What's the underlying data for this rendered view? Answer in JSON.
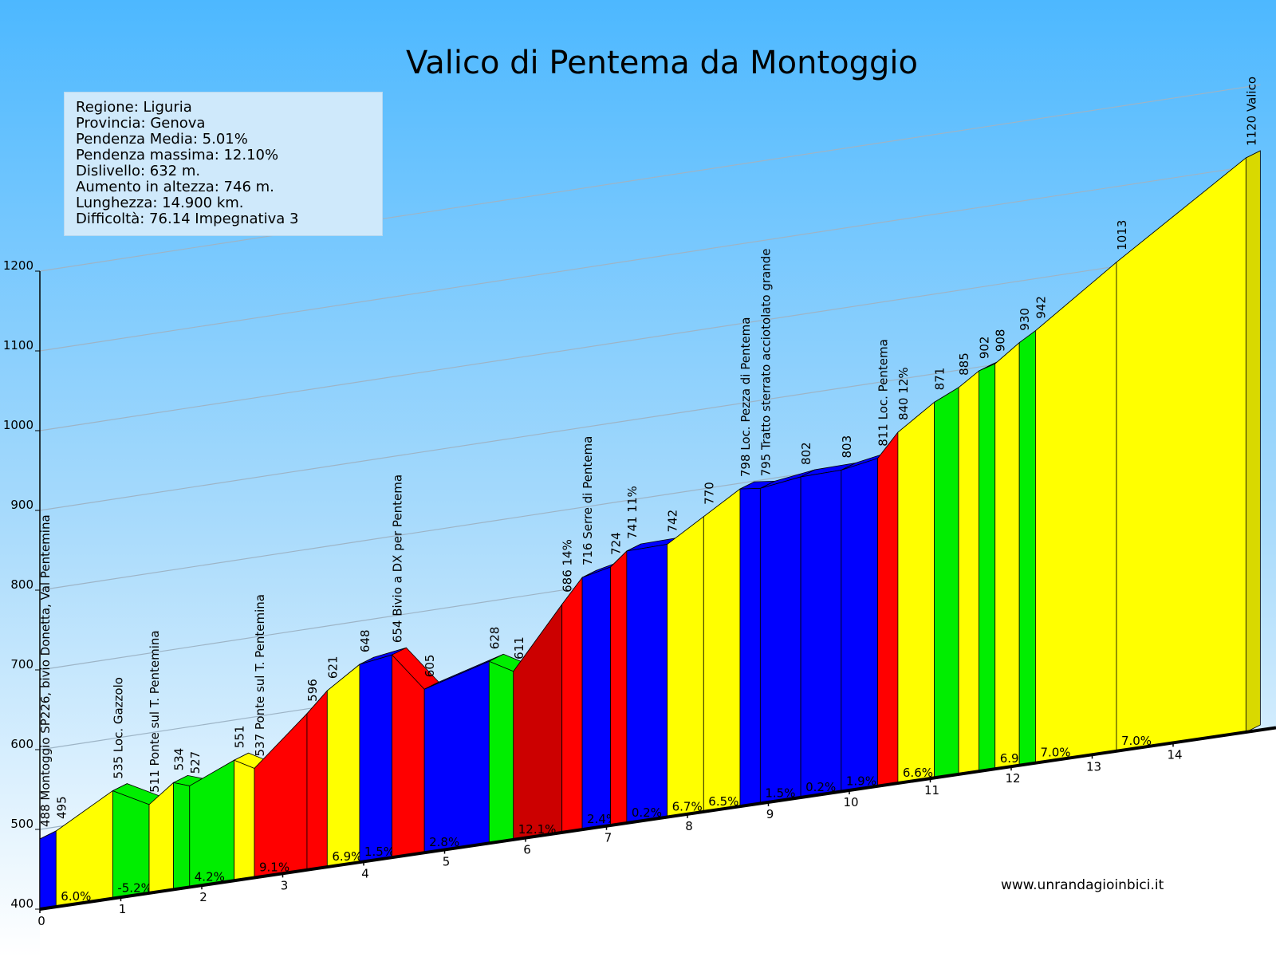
{
  "title": "Valico di Pentema da Montoggio",
  "info": {
    "lines": [
      "Regione: Liguria",
      "Provincia: Genova",
      "Pendenza Media: 5.01%",
      "Pendenza massima: 12.10%",
      "Dislivello: 632 m.",
      "Aumento in altezza: 746 m.",
      "Lunghezza: 14.900 km.",
      "Difficoltà: 76.14 Impegnativa 3"
    ]
  },
  "website": "www.unrandagioinbici.it",
  "colors": {
    "blue": "#0000ff",
    "yellow": "#ffff00",
    "green": "#00ee00",
    "red": "#ff0000",
    "darkred": "#cc0000",
    "sky_top": "#4db8ff",
    "sky_bottom": "#ffffff"
  },
  "chart_data": {
    "type": "area",
    "title": "Valico di Pentema da Montoggio",
    "xlabel": "",
    "ylabel": "",
    "x_unit": "km",
    "xlim": [
      0,
      14.9
    ],
    "ylim": [
      400,
      1200
    ],
    "y_ticks": [
      "400",
      "500",
      "600",
      "700",
      "800",
      "900",
      "1000",
      "1100",
      "1200"
    ],
    "x_ticks": [
      "0",
      "1",
      "2",
      "3",
      "4",
      "5",
      "6",
      "7",
      "8",
      "9",
      "10",
      "11",
      "12",
      "13",
      "14"
    ],
    "grid": true,
    "points": [
      {
        "x": 0,
        "elev": 488,
        "label": "488 Montoggio SP226, bivio Donetta, Val Pentemina"
      },
      {
        "x": 0.2,
        "elev": 495,
        "label": "495"
      },
      {
        "x": 0.9,
        "elev": 535,
        "label": "535 Loc. Gazzolo"
      },
      {
        "x": 1.35,
        "elev": 511,
        "label": "511 Ponte sul T. Pentemina"
      },
      {
        "x": 1.65,
        "elev": 534,
        "label": "534"
      },
      {
        "x": 1.85,
        "elev": 527,
        "label": "527"
      },
      {
        "x": 2.4,
        "elev": 551,
        "label": "551"
      },
      {
        "x": 2.65,
        "elev": 537,
        "label": "537 Ponte sul T. Pentemina"
      },
      {
        "x": 3.3,
        "elev": 596,
        "label": "596"
      },
      {
        "x": 3.55,
        "elev": 621,
        "label": "621"
      },
      {
        "x": 3.95,
        "elev": 648,
        "label": "648"
      },
      {
        "x": 4.35,
        "elev": 654,
        "label": "654 Bivio a DX per Pentema"
      },
      {
        "x": 4.75,
        "elev": 605,
        "label": "605"
      },
      {
        "x": 5.55,
        "elev": 628,
        "label": "628"
      },
      {
        "x": 5.85,
        "elev": 611,
        "label": "611"
      },
      {
        "x": 6.45,
        "elev": 686,
        "label": "686 14%"
      },
      {
        "x": 6.7,
        "elev": 716,
        "label": "716 Serre di Pentema"
      },
      {
        "x": 7.05,
        "elev": 724,
        "label": "724"
      },
      {
        "x": 7.25,
        "elev": 741,
        "label": "741 11%"
      },
      {
        "x": 7.75,
        "elev": 742,
        "label": "742"
      },
      {
        "x": 8.2,
        "elev": 770,
        "label": "770"
      },
      {
        "x": 8.65,
        "elev": 798,
        "label": "798 Loc. Pezza di Pentema"
      },
      {
        "x": 8.9,
        "elev": 795,
        "label": "795 Tratto sterrato acciotolato grande"
      },
      {
        "x": 9.4,
        "elev": 802,
        "label": "802"
      },
      {
        "x": 9.9,
        "elev": 803,
        "label": "803"
      },
      {
        "x": 10.35,
        "elev": 811,
        "label": "811 Loc. Pentema"
      },
      {
        "x": 10.6,
        "elev": 840,
        "label": "840 12%"
      },
      {
        "x": 11.05,
        "elev": 871,
        "label": "871"
      },
      {
        "x": 11.35,
        "elev": 885,
        "label": "885"
      },
      {
        "x": 11.6,
        "elev": 902,
        "label": "902"
      },
      {
        "x": 11.8,
        "elev": 908,
        "label": "908"
      },
      {
        "x": 12.1,
        "elev": 930,
        "label": "930"
      },
      {
        "x": 12.3,
        "elev": 942,
        "label": "942"
      },
      {
        "x": 13.3,
        "elev": 1013,
        "label": "1013"
      },
      {
        "x": 14.9,
        "elev": 1120,
        "label": "1120 Valico"
      }
    ],
    "segments": [
      {
        "color": "blue",
        "grade": ""
      },
      {
        "color": "yellow",
        "grade": "6.0%"
      },
      {
        "color": "green",
        "grade": "-5.2%"
      },
      {
        "color": "yellow",
        "grade": ""
      },
      {
        "color": "green",
        "grade": ""
      },
      {
        "color": "green",
        "grade": "4.2%"
      },
      {
        "color": "yellow",
        "grade": ""
      },
      {
        "color": "red",
        "grade": "9.1%"
      },
      {
        "color": "red",
        "grade": ""
      },
      {
        "color": "yellow",
        "grade": "6.9%"
      },
      {
        "color": "blue",
        "grade": "1.5%"
      },
      {
        "color": "red",
        "grade": ""
      },
      {
        "color": "blue",
        "grade": "2.8%"
      },
      {
        "color": "green",
        "grade": ""
      },
      {
        "color": "darkred",
        "grade": "12.1%"
      },
      {
        "color": "red",
        "grade": ""
      },
      {
        "color": "blue",
        "grade": "2.4%"
      },
      {
        "color": "red",
        "grade": ""
      },
      {
        "color": "blue",
        "grade": "0.2%"
      },
      {
        "color": "yellow",
        "grade": "6.7%"
      },
      {
        "color": "yellow",
        "grade": "6.5%"
      },
      {
        "color": "blue",
        "grade": ""
      },
      {
        "color": "blue",
        "grade": "1.5%"
      },
      {
        "color": "blue",
        "grade": "0.2%"
      },
      {
        "color": "blue",
        "grade": "1.9%"
      },
      {
        "color": "red",
        "grade": ""
      },
      {
        "color": "yellow",
        "grade": "6.6%"
      },
      {
        "color": "green",
        "grade": ""
      },
      {
        "color": "yellow",
        "grade": ""
      },
      {
        "color": "green",
        "grade": ""
      },
      {
        "color": "yellow",
        "grade": "6.9%"
      },
      {
        "color": "green",
        "grade": ""
      },
      {
        "color": "yellow",
        "grade": "7.0%"
      },
      {
        "color": "yellow",
        "grade": "7.0%"
      }
    ]
  }
}
